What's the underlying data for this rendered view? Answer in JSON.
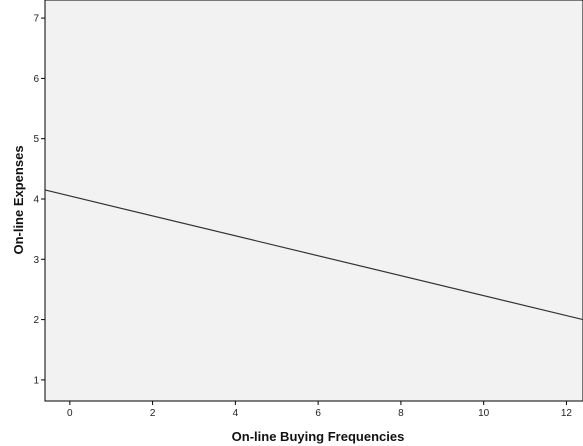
{
  "chart_data": {
    "type": "line",
    "title": "",
    "xlabel": "On-line Buying Frequencies",
    "ylabel": "On-line Expenses",
    "xlim": [
      -0.6,
      12.4
    ],
    "ylim": [
      0.65,
      7.3
    ],
    "xticks": [
      0,
      2,
      4,
      6,
      8,
      10,
      12
    ],
    "xtick_labels": [
      "0",
      "2",
      "4",
      "6",
      "8",
      "10",
      "12"
    ],
    "yticks": [
      1,
      2,
      3,
      4,
      5,
      6,
      7
    ],
    "ytick_labels": [
      "1",
      "2",
      "3",
      "4",
      "5",
      "6",
      "7"
    ],
    "grid": false,
    "background_color": "#f2f2f2",
    "series": [
      {
        "x": [
          -0.6,
          12.4
        ],
        "y": [
          4.15,
          2.0
        ],
        "color": "#333333"
      }
    ]
  }
}
